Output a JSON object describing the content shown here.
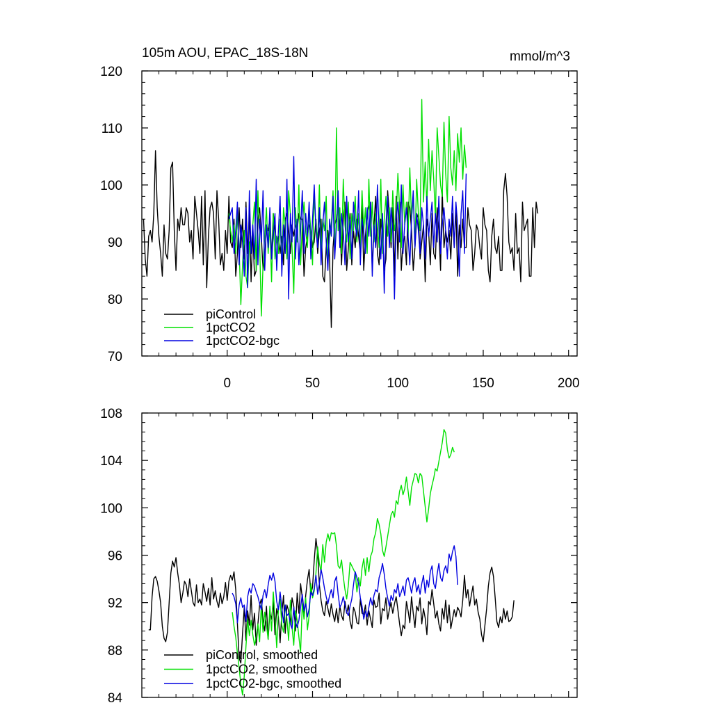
{
  "chart_data": [
    {
      "type": "line",
      "title": "105m AOU, EPAC_18S-18N",
      "units": "mmol/m^3",
      "xlim": [
        -50,
        205
      ],
      "ylim": [
        70,
        120
      ],
      "x_ticks": [
        0,
        50,
        100,
        150,
        200
      ],
      "x_tick_labels": [
        "0",
        "50",
        "100",
        "150",
        "200"
      ],
      "y_ticks": [
        70,
        80,
        90,
        100,
        110,
        120
      ],
      "y_tick_labels": [
        "70",
        "80",
        "90",
        "100",
        "110",
        "120"
      ],
      "legend_location": "bottom-left",
      "series": [
        {
          "name": "piControl",
          "color": "#000000",
          "x_start": -49,
          "x_step": 1,
          "values": [
            94,
            87,
            84,
            91,
            92,
            90,
            95,
            106,
            96,
            91,
            88,
            84,
            93,
            88,
            87,
            92,
            103,
            104,
            92,
            85,
            94,
            92,
            96,
            93,
            93,
            96,
            95,
            90,
            92,
            87,
            98,
            95,
            92,
            88,
            98,
            86,
            99,
            82,
            91,
            96,
            97,
            95,
            87,
            99,
            94,
            86,
            88,
            85,
            92,
            88,
            98,
            90,
            89,
            94,
            84,
            88,
            96,
            89,
            94,
            87,
            97,
            88,
            95,
            83,
            92,
            84,
            85,
            94,
            96,
            91,
            85,
            87,
            93,
            92,
            94,
            87,
            95,
            92,
            90,
            91,
            88,
            91,
            86,
            94,
            95,
            92,
            88,
            93,
            91,
            93,
            92,
            95,
            94,
            94,
            84,
            89,
            91,
            93,
            92,
            89,
            90,
            94,
            88,
            92,
            94,
            84,
            83,
            89,
            92,
            87,
            75,
            89,
            93,
            94,
            97,
            93,
            86,
            94,
            97,
            85,
            89,
            95,
            86,
            92,
            89,
            94,
            91,
            88,
            97,
            85,
            91,
            95,
            96,
            97,
            85,
            93,
            98,
            88,
            86,
            94,
            91,
            85,
            87,
            99,
            95,
            89,
            96,
            84,
            98,
            87,
            97,
            85,
            90,
            91,
            86,
            97,
            96,
            92,
            85,
            89,
            94,
            95,
            87,
            90,
            93,
            83,
            94,
            92,
            86,
            95,
            88,
            87,
            96,
            92,
            85,
            99,
            89,
            92,
            90,
            92,
            87,
            95,
            89,
            96,
            84,
            93,
            89,
            94,
            89,
            89,
            96,
            93,
            92,
            85,
            88,
            93,
            92,
            89,
            87,
            96,
            93,
            92,
            85,
            83,
            91,
            94,
            89,
            88,
            91,
            85,
            85,
            99,
            102,
            98,
            90,
            88,
            89,
            85,
            95,
            88,
            89,
            83,
            97,
            92,
            93,
            94,
            84,
            84,
            96,
            89,
            97,
            95
          ]
        },
        {
          "name": "1pctCO2",
          "color": "#00e000",
          "x_start": 1,
          "x_step": 1,
          "values": [
            95,
            92,
            90,
            93,
            88,
            95,
            89,
            79,
            86,
            92,
            84,
            82,
            90,
            88,
            93,
            97,
            85,
            99,
            90,
            77,
            86,
            91,
            96,
            88,
            93,
            83,
            95,
            87,
            91,
            88,
            94,
            86,
            96,
            93,
            87,
            99,
            95,
            89,
            81,
            96,
            90,
            100,
            86,
            93,
            97,
            92,
            89,
            96,
            92,
            86,
            98,
            93,
            90,
            100,
            88,
            94,
            92,
            98,
            87,
            91,
            93,
            99,
            89,
            110,
            92,
            96,
            88,
            101,
            93,
            90,
            97,
            87,
            95,
            92,
            98,
            90,
            95,
            89,
            99,
            92,
            96,
            88,
            101,
            91,
            97,
            90,
            95,
            93,
            89,
            101,
            88,
            94,
            98,
            91,
            96,
            90,
            99,
            92,
            94,
            102,
            96,
            89,
            100,
            93,
            97,
            91,
            103,
            94,
            98,
            89,
            101,
            95,
            92,
            115,
            97,
            104,
            96,
            108,
            99,
            106,
            101,
            94,
            110,
            105,
            100,
            98,
            111,
            102,
            97,
            112,
            103,
            100,
            106,
            99,
            109,
            104,
            110,
            101,
            107,
            103
          ]
        },
        {
          "name": "1pctCO2-bgc",
          "color": "#0000e0",
          "x_start": 1,
          "x_step": 1,
          "values": [
            94,
            95,
            96,
            88,
            92,
            97,
            86,
            93,
            90,
            84,
            96,
            82,
            99,
            88,
            93,
            87,
            101,
            86,
            94,
            90,
            99,
            85,
            93,
            89,
            96,
            87,
            91,
            95,
            85,
            92,
            98,
            84,
            93,
            88,
            101,
            80,
            95,
            90,
            105,
            87,
            94,
            86,
            92,
            99,
            88,
            95,
            91,
            97,
            87,
            94,
            100,
            92,
            89,
            96,
            86,
            93,
            97,
            90,
            85,
            94,
            91,
            98,
            87,
            93,
            99,
            89,
            95,
            92,
            86,
            98,
            90,
            94,
            87,
            97,
            93,
            91,
            99,
            86,
            94,
            92,
            88,
            96,
            91,
            97,
            84,
            93,
            89,
            100,
            92,
            87,
            95,
            81,
            93,
            98,
            89,
            96,
            92,
            80,
            94,
            97,
            90,
            100,
            88,
            93,
            96,
            91,
            86,
            94,
            99,
            89,
            95,
            92,
            88,
            96,
            93,
            87,
            98,
            91,
            94,
            97,
            89,
            95,
            90,
            98,
            88,
            93,
            96,
            92,
            87,
            94,
            91,
            98,
            89,
            97,
            93,
            84,
            95,
            99,
            88,
            102
          ]
        }
      ]
    },
    {
      "type": "line",
      "title": "",
      "xlim": [
        -50,
        205
      ],
      "ylim": [
        84,
        108
      ],
      "x_ticks": [
        0,
        50,
        100,
        150,
        200
      ],
      "y_ticks": [
        84,
        88,
        92,
        96,
        100,
        104,
        108
      ],
      "y_tick_labels": [
        "84",
        "88",
        "92",
        "96",
        "100",
        "104",
        "108"
      ],
      "legend_location": "bottom-left",
      "series": [
        {
          "name": "piControl, smoothed",
          "color": "#000000",
          "x_start": -46,
          "x_step": 1,
          "values": [
            89.7,
            89.7,
            92.5,
            94,
            94.2,
            93.8,
            93,
            92,
            90,
            89,
            88.7,
            89.5,
            92,
            94.5,
            95.5,
            95,
            95.8,
            94.5,
            93.5,
            92,
            92.8,
            93.8,
            93.5,
            92.5,
            94,
            93,
            92,
            91.7,
            93.5,
            92,
            92.3,
            91.8,
            93.6,
            92.9,
            92.1,
            93.2,
            91.8,
            94.1,
            92.3,
            93,
            92.1,
            91.6,
            92.8,
            91.9,
            92.5,
            93.7,
            92.2,
            93.8,
            94.3,
            93.9,
            94.6,
            93.1,
            90.2,
            87.3,
            86.9,
            89.4,
            91.6,
            88.8,
            91.3,
            90.1,
            92.6,
            89.7,
            91.1,
            88.4,
            90.2,
            91.8,
            92.3,
            90.5,
            89.6,
            91.7,
            88.9,
            91.2,
            90.6,
            92.1,
            89.3,
            91.5,
            90.8,
            88.6,
            91.1,
            92.6,
            89.4,
            91.8,
            91.3,
            90.2,
            92.4,
            91.7,
            89.6,
            92.8,
            91.1,
            93.6,
            92.4,
            90.8,
            92.6,
            93.9,
            94.8,
            92.7,
            93.3,
            95.6,
            97.4,
            96.2,
            93.5,
            92.2,
            91.3,
            90.9,
            92.1,
            91.5,
            90.8,
            91.9,
            91,
            90.4,
            91.5,
            90.3,
            91.7,
            90.9,
            90.5,
            92.1,
            91.1,
            91.8,
            90.4,
            89.8,
            91.6,
            91.2,
            90.3,
            90.2,
            92.3,
            91.1,
            91,
            91.8,
            90.1,
            91.3,
            90.6,
            89.9,
            92.2,
            91.6,
            91.7,
            92.8,
            90.2,
            91.5,
            91.3,
            92.4,
            90.6,
            91.4,
            92,
            91.1,
            91.9,
            92.5,
            91.4,
            90.2,
            89.2,
            90.1,
            89.8,
            92.1,
            91.3,
            90.3,
            92.5,
            91.1,
            89.9,
            91.7,
            91.3,
            92.4,
            90.2,
            91.5,
            90.7,
            89.3,
            92.1,
            91.8,
            93.1,
            91.9,
            90.7,
            91.3,
            90.2,
            89.6,
            91.5,
            90.6,
            92.2,
            90.3,
            91.8,
            89.8,
            90.6,
            91.4,
            90.8,
            91.6,
            91.3,
            90.8,
            92.2,
            94.3,
            92.4,
            93.1,
            91.7,
            92.6,
            93.4,
            91.8,
            92.3,
            91.2,
            90.6,
            89.3,
            88.7,
            90.1,
            91.5,
            93.4,
            94.5,
            95,
            94.2,
            92.4,
            90.4,
            89.9,
            90.8,
            90.3,
            91.5,
            90.6,
            91.3,
            90.4,
            90.5,
            90.8,
            92.2
          ]
        },
        {
          "name": "1pctCO2, smoothed",
          "color": "#00e000",
          "x_start": 3,
          "x_step": 1,
          "values": [
            91.2,
            90,
            89.1,
            87.7,
            86.5,
            85.1,
            84.2,
            85.8,
            88.3,
            90.6,
            89.2,
            90.5,
            89.3,
            88.4,
            89.1,
            90.2,
            88.7,
            91.8,
            89.5,
            91.2,
            90.1,
            88.9,
            91.7,
            89.6,
            92.9,
            90.8,
            88.2,
            91.4,
            92.3,
            90.1,
            89.5,
            91.8,
            90.6,
            88.8,
            92.2,
            89.9,
            88.4,
            91.3,
            90.5,
            89.1,
            87.8,
            91.9,
            90.6,
            92.4,
            89.7,
            90.9,
            93.6,
            92.4,
            93,
            94.5,
            96.7,
            95.3,
            94.6,
            96.9,
            95.4,
            97.1,
            97.8,
            97.2,
            97.9,
            97.8,
            97.9,
            96.8,
            95.1,
            94.9,
            95.6,
            94.2,
            93.1,
            92.3,
            93.5,
            95.4,
            95.1,
            94.8,
            94.5,
            92.9,
            94.1,
            93.4,
            94.9,
            95.7,
            94.3,
            95.8,
            94.6,
            95.9,
            96.3,
            97.4,
            97.9,
            99.1,
            98.6,
            97.8,
            96.4,
            95.9,
            96.7,
            97.6,
            98.5,
            99.4,
            99.7,
            99.2,
            100.6,
            100.3,
            101.4,
            101.9,
            101.1,
            101.6,
            102.6,
            101.4,
            100.2,
            101.7,
            102.3,
            102.9,
            102.8,
            102.1,
            102.9,
            102.7,
            101.4,
            100.1,
            98.8,
            99.9,
            101.2,
            101.9,
            102.5,
            103.3,
            103.1,
            103.9,
            104.7,
            105.5,
            106.6,
            106.3,
            104.9,
            104.2,
            104.5,
            105.1,
            104.7
          ]
        },
        {
          "name": "1pctCO2-bgc, smoothed",
          "color": "#0000e0",
          "x_start": 3,
          "x_step": 1,
          "values": [
            92.8,
            92.5,
            91.9,
            90.3,
            91.8,
            92.4,
            91.6,
            91.8,
            90.4,
            92.5,
            93.2,
            92.8,
            93.6,
            93.4,
            92.9,
            92.5,
            91.9,
            91.4,
            92.6,
            93.1,
            92.4,
            93.5,
            94.3,
            93.9,
            94.5,
            93.8,
            92.1,
            91.4,
            92.9,
            91.6,
            90.3,
            91.8,
            90.9,
            91.1,
            90.2,
            89.8,
            91.6,
            90.4,
            89.9,
            90.5,
            91.6,
            92.7,
            91.3,
            91.9,
            90.8,
            91.5,
            92.9,
            92.6,
            93.2,
            94.3,
            92.7,
            93.6,
            94.8,
            94.1,
            93.2,
            92.5,
            91.9,
            92.6,
            93.1,
            92.4,
            93.8,
            94.2,
            92.7,
            91.6,
            91.9,
            92.5,
            91.8,
            91.2,
            90.9,
            91.7,
            92.3,
            93.5,
            94.6,
            94.1,
            93.6,
            92.4,
            91.7,
            90.6,
            91.3,
            90.8,
            91.6,
            92.4,
            91.8,
            92.6,
            93.1,
            92.9,
            94.1,
            94.6,
            95.3,
            94.4,
            93.2,
            92.4,
            91.7,
            92.6,
            92.2,
            93.1,
            92.8,
            93.6,
            92.5,
            92.9,
            93.4,
            92.6,
            93.9,
            94.1,
            93.5,
            92.8,
            93.7,
            94.1,
            92.9,
            93.5,
            92.7,
            93.6,
            94.3,
            92.8,
            93.9,
            93.3,
            94.6,
            95.1,
            93.6,
            93.2,
            94.4,
            95.3,
            94.1,
            93.8,
            94.7,
            95.1,
            94.5,
            96.1,
            95.5,
            96.3,
            96.8,
            95.9,
            93.5
          ]
        }
      ]
    }
  ]
}
